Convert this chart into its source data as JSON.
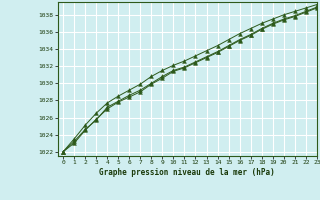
{
  "title": "Graphe pression niveau de la mer (hPa)",
  "background_color": "#d0eef0",
  "plot_bg_color": "#d0eef0",
  "grid_color": "#ffffff",
  "line_color": "#2d5a1b",
  "marker_color": "#2d5a1b",
  "xlim": [
    -0.5,
    23
  ],
  "ylim": [
    1021.5,
    1039.5
  ],
  "xticks": [
    0,
    1,
    2,
    3,
    4,
    5,
    6,
    7,
    8,
    9,
    10,
    11,
    12,
    13,
    14,
    15,
    16,
    17,
    18,
    19,
    20,
    21,
    22,
    23
  ],
  "yticks": [
    1022,
    1024,
    1026,
    1028,
    1030,
    1032,
    1034,
    1036,
    1038
  ],
  "series1": [
    1022.0,
    1023.2,
    1024.6,
    1025.7,
    1027.2,
    1027.9,
    1028.6,
    1029.2,
    1030.0,
    1030.8,
    1031.5,
    1031.9,
    1032.5,
    1033.1,
    1033.7,
    1034.4,
    1035.1,
    1035.7,
    1036.4,
    1037.0,
    1037.5,
    1037.9,
    1038.4,
    1038.9
  ],
  "series2": [
    1022.0,
    1023.0,
    1024.5,
    1025.8,
    1027.0,
    1027.8,
    1028.4,
    1029.0,
    1029.9,
    1030.6,
    1031.4,
    1031.8,
    1032.4,
    1033.0,
    1033.6,
    1034.3,
    1035.0,
    1035.6,
    1036.3,
    1036.9,
    1037.4,
    1037.8,
    1038.3,
    1038.8
  ],
  "series3": [
    1022.0,
    1023.5,
    1025.1,
    1026.5,
    1027.7,
    1028.5,
    1029.2,
    1029.9,
    1030.8,
    1031.5,
    1032.1,
    1032.6,
    1033.2,
    1033.8,
    1034.4,
    1035.1,
    1035.8,
    1036.4,
    1037.0,
    1037.5,
    1038.0,
    1038.4,
    1038.8,
    1039.2
  ]
}
